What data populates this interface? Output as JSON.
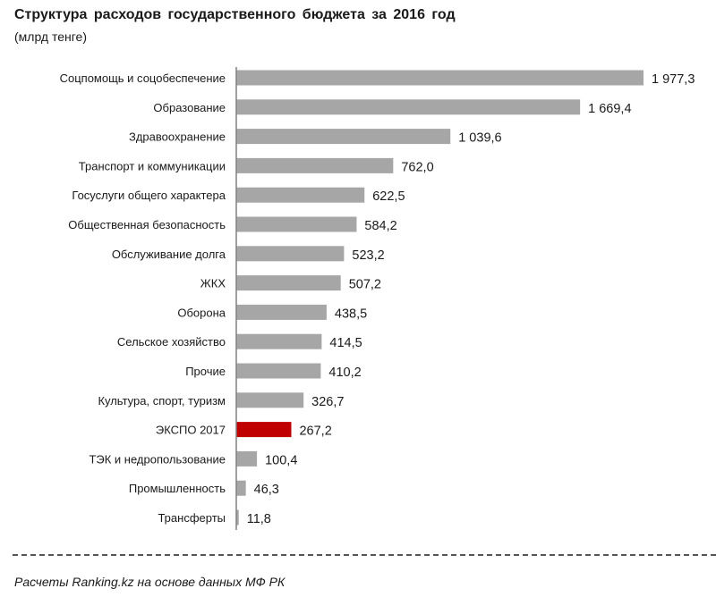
{
  "chart_data": {
    "type": "bar",
    "orientation": "horizontal",
    "title": "Структура  расходов  государственного  бюджета за 2016 год",
    "subtitle": "(млрд тенге)",
    "xlabel": "",
    "ylabel": "",
    "xlim": [
      0,
      1977.3
    ],
    "grid": false,
    "categories": [
      "Соцпомощь и соцобеспечение",
      "Образование",
      "Здравоохранение",
      "Транспорт и коммуникации",
      "Госуслуги общего характера",
      "Общественная безопасность",
      "Обслуживание долга",
      "ЖКХ",
      "Оборона",
      "Сельское хозяйство",
      "Прочие",
      "Культура, спорт, туризм",
      "ЭКСПО 2017",
      "ТЭК и недропользование",
      "Промышленность",
      "Трансферты"
    ],
    "values": [
      1977.3,
      1669.4,
      1039.6,
      762.0,
      622.5,
      584.2,
      523.2,
      507.2,
      438.5,
      414.5,
      410.2,
      326.7,
      267.2,
      100.4,
      46.3,
      11.8
    ],
    "value_labels": [
      "1 977,3",
      "1 669,4",
      "1 039,6",
      "762,0",
      "622,5",
      "584,2",
      "523,2",
      "507,2",
      "438,5",
      "414,5",
      "410,2",
      "326,7",
      "267,2",
      "100,4",
      "46,3",
      "11,8"
    ],
    "highlight_index": 12,
    "colors": {
      "default": "#a6a6a6",
      "highlight": "#c00000",
      "axis": "#808080"
    }
  },
  "footer": {
    "source": "Расчеты Ranking.kz на основе данных МФ РК"
  }
}
